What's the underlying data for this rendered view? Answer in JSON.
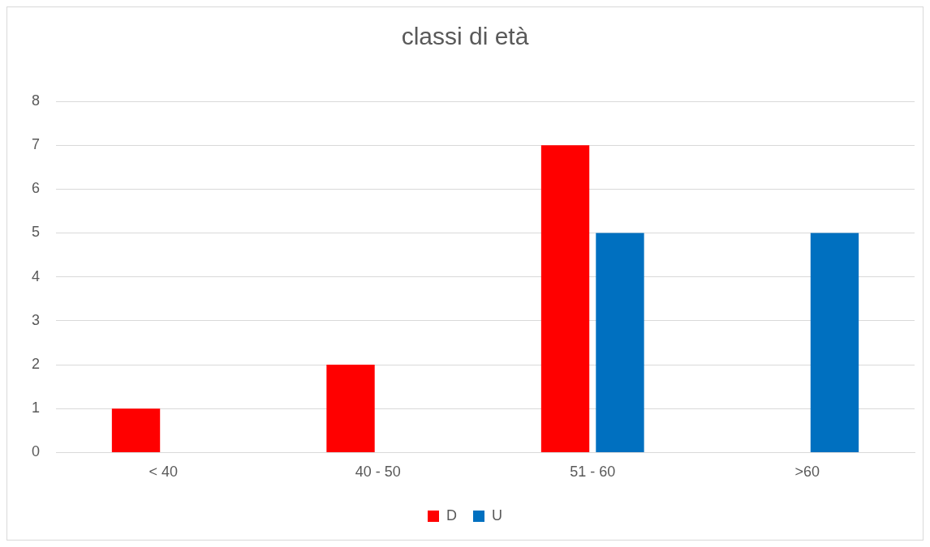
{
  "chart_data": {
    "type": "bar",
    "title": "classi di età",
    "categories": [
      "< 40",
      "40 - 50",
      "51 - 60",
      ">60"
    ],
    "series": [
      {
        "name": "D",
        "color": "#ff0000",
        "values": [
          1,
          2,
          7,
          0
        ]
      },
      {
        "name": "U",
        "color": "#0070c0",
        "values": [
          0,
          0,
          5,
          5
        ]
      }
    ],
    "ylim": [
      0,
      8
    ],
    "yticks": [
      0,
      1,
      2,
      3,
      4,
      5,
      6,
      7,
      8
    ],
    "grid": "y",
    "legend": "bottom"
  }
}
